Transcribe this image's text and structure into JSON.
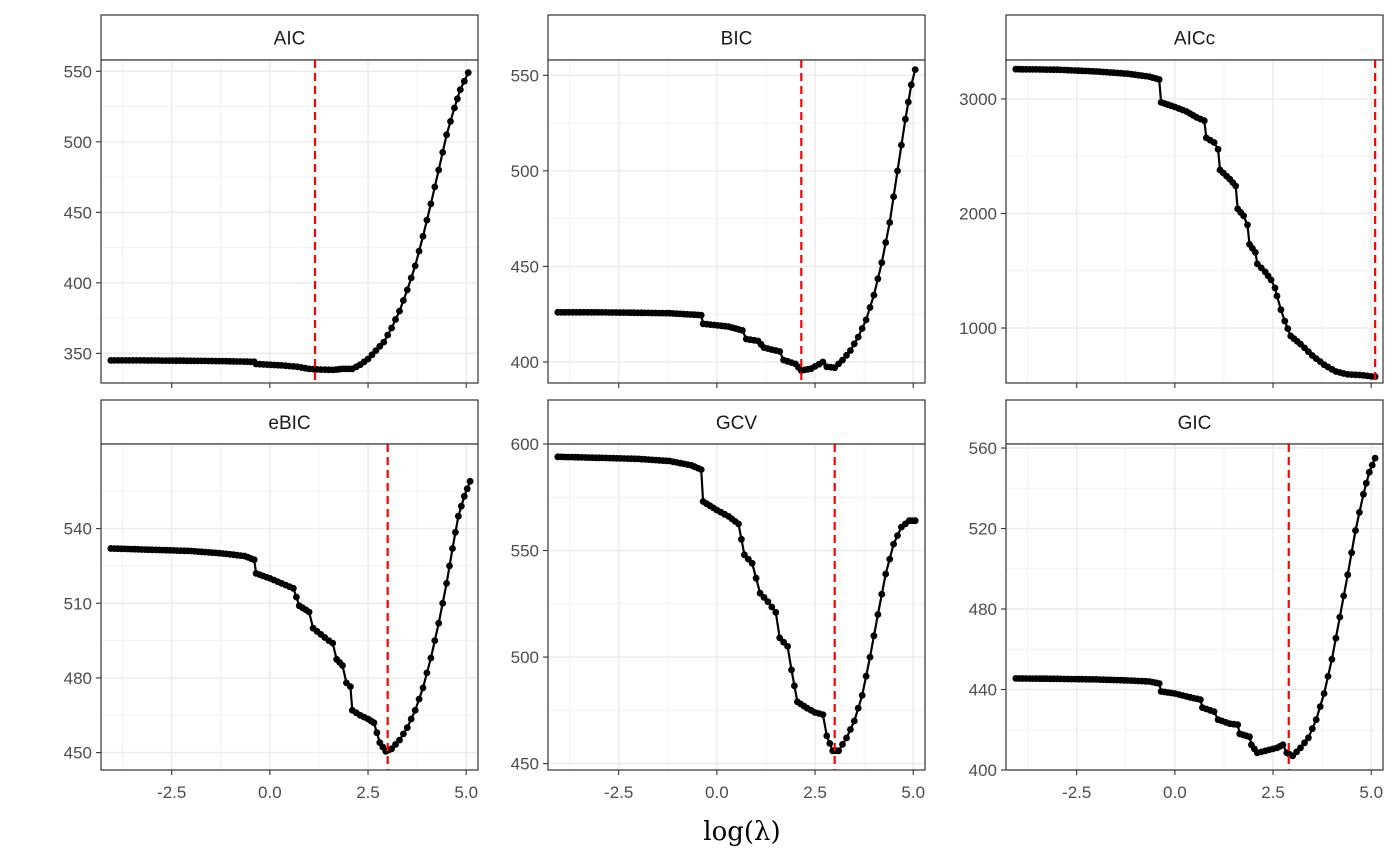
{
  "chart_data": {
    "type": "scatter",
    "layout": "facet_wrap",
    "xlabel": "log(λ)",
    "x_ticks": [
      -2.5,
      0.0,
      2.5,
      5.0
    ],
    "x_tick_labels": [
      "-2.5",
      "0.0",
      "2.5",
      "5.0"
    ],
    "xlim": [
      -4.3,
      5.3
    ],
    "grid": true,
    "vline_color": "#ff0000",
    "line_color": "#000000",
    "panels": [
      {
        "title": "AIC",
        "ylim": [
          329,
          558
        ],
        "yticks": [
          350,
          400,
          450,
          500,
          550
        ],
        "ytick_labels": [
          "350",
          "400",
          "450",
          "500",
          "550"
        ],
        "vline": 1.15,
        "points": [
          [
            -4.05,
            345
          ],
          [
            -3.2,
            345
          ],
          [
            -2.2,
            344.8
          ],
          [
            -1.2,
            344.5
          ],
          [
            -0.4,
            344
          ],
          [
            -0.35,
            342.5
          ],
          [
            0.3,
            341.5
          ],
          [
            0.7,
            340.5
          ],
          [
            1.0,
            339
          ],
          [
            1.3,
            338.5
          ],
          [
            1.6,
            338.3
          ],
          [
            1.85,
            339
          ],
          [
            2.1,
            339
          ],
          [
            2.3,
            342
          ],
          [
            2.5,
            346
          ],
          [
            2.7,
            352
          ],
          [
            2.9,
            358
          ],
          [
            3.1,
            368
          ],
          [
            3.3,
            380
          ],
          [
            3.5,
            395
          ],
          [
            3.7,
            412
          ],
          [
            3.9,
            433
          ],
          [
            4.1,
            456
          ],
          [
            4.3,
            480
          ],
          [
            4.5,
            505
          ],
          [
            4.7,
            524
          ],
          [
            4.85,
            537
          ],
          [
            4.95,
            543
          ],
          [
            5.05,
            549
          ]
        ]
      },
      {
        "title": "BIC",
        "ylim": [
          389,
          558
        ],
        "yticks": [
          400,
          450,
          500,
          550
        ],
        "ytick_labels": [
          "400",
          "450",
          "500",
          "550"
        ],
        "vline": 2.15,
        "points": [
          [
            -4.05,
            426
          ],
          [
            -3.2,
            426
          ],
          [
            -2.2,
            425.8
          ],
          [
            -1.2,
            425.5
          ],
          [
            -0.4,
            424.5
          ],
          [
            -0.35,
            420
          ],
          [
            0.3,
            418.5
          ],
          [
            0.65,
            416.5
          ],
          [
            0.75,
            412
          ],
          [
            1.05,
            411
          ],
          [
            1.2,
            407.5
          ],
          [
            1.6,
            405.5
          ],
          [
            1.7,
            401
          ],
          [
            2.0,
            399
          ],
          [
            2.15,
            395.5
          ],
          [
            2.4,
            396.5
          ],
          [
            2.7,
            400
          ],
          [
            2.8,
            397.5
          ],
          [
            3.0,
            397
          ],
          [
            3.2,
            401
          ],
          [
            3.4,
            406
          ],
          [
            3.6,
            413
          ],
          [
            3.8,
            422
          ],
          [
            4.0,
            435
          ],
          [
            4.2,
            452
          ],
          [
            4.4,
            473
          ],
          [
            4.6,
            500
          ],
          [
            4.8,
            527
          ],
          [
            4.95,
            545
          ],
          [
            5.05,
            553
          ]
        ]
      },
      {
        "title": "AICc",
        "ylim": [
          520,
          3340
        ],
        "yticks": [
          1000,
          2000,
          3000
        ],
        "ytick_labels": [
          "1000",
          "2000",
          "3000"
        ],
        "vline": 5.1,
        "points": [
          [
            -4.05,
            3260
          ],
          [
            -3.0,
            3255
          ],
          [
            -2.0,
            3240
          ],
          [
            -1.2,
            3220
          ],
          [
            -0.65,
            3195
          ],
          [
            -0.4,
            3170
          ],
          [
            -0.35,
            2970
          ],
          [
            0.0,
            2930
          ],
          [
            0.3,
            2890
          ],
          [
            0.55,
            2840
          ],
          [
            0.75,
            2810
          ],
          [
            0.8,
            2660
          ],
          [
            1.0,
            2620
          ],
          [
            1.1,
            2560
          ],
          [
            1.15,
            2380
          ],
          [
            1.4,
            2300
          ],
          [
            1.55,
            2240
          ],
          [
            1.6,
            2040
          ],
          [
            1.75,
            1980
          ],
          [
            1.85,
            1900
          ],
          [
            1.9,
            1730
          ],
          [
            2.05,
            1660
          ],
          [
            2.1,
            1560
          ],
          [
            2.3,
            1490
          ],
          [
            2.45,
            1420
          ],
          [
            2.55,
            1350
          ],
          [
            2.6,
            1280
          ],
          [
            2.7,
            1160
          ],
          [
            2.8,
            1060
          ],
          [
            2.95,
            930
          ],
          [
            3.2,
            860
          ],
          [
            3.5,
            760
          ],
          [
            3.8,
            680
          ],
          [
            4.1,
            620
          ],
          [
            4.4,
            595
          ],
          [
            4.7,
            590
          ],
          [
            5.0,
            578
          ],
          [
            5.1,
            575
          ]
        ]
      },
      {
        "title": "eBIC",
        "ylim": [
          443,
          574
        ],
        "yticks": [
          450,
          480,
          510,
          540
        ],
        "ytick_labels": [
          "450",
          "480",
          "510",
          "540"
        ],
        "vline": 3.0,
        "points": [
          [
            -4.05,
            532
          ],
          [
            -3.0,
            531.5
          ],
          [
            -2.0,
            531
          ],
          [
            -1.2,
            530
          ],
          [
            -0.65,
            529
          ],
          [
            -0.4,
            527.5
          ],
          [
            -0.35,
            522
          ],
          [
            0.0,
            520
          ],
          [
            0.3,
            518
          ],
          [
            0.6,
            516
          ],
          [
            0.75,
            509
          ],
          [
            1.0,
            506.5
          ],
          [
            1.1,
            500
          ],
          [
            1.3,
            497.5
          ],
          [
            1.5,
            495
          ],
          [
            1.6,
            494
          ],
          [
            1.7,
            487.5
          ],
          [
            1.85,
            485
          ],
          [
            1.95,
            478
          ],
          [
            2.05,
            476.5
          ],
          [
            2.1,
            467
          ],
          [
            2.3,
            465
          ],
          [
            2.5,
            463.5
          ],
          [
            2.65,
            462
          ],
          [
            2.8,
            454
          ],
          [
            2.95,
            450.5
          ],
          [
            3.1,
            451.5
          ],
          [
            3.3,
            455
          ],
          [
            3.5,
            460
          ],
          [
            3.7,
            467
          ],
          [
            3.9,
            476
          ],
          [
            4.1,
            488
          ],
          [
            4.3,
            502
          ],
          [
            4.5,
            518
          ],
          [
            4.65,
            532
          ],
          [
            4.8,
            545
          ],
          [
            4.95,
            553
          ],
          [
            5.1,
            559
          ]
        ]
      },
      {
        "title": "GCV",
        "ylim": [
          447,
          600
        ],
        "yticks": [
          450,
          500,
          550,
          600
        ],
        "ytick_labels": [
          "450",
          "500",
          "550",
          "600"
        ],
        "vline": 3.0,
        "points": [
          [
            -4.05,
            594
          ],
          [
            -3.0,
            593.5
          ],
          [
            -2.0,
            593
          ],
          [
            -1.2,
            592
          ],
          [
            -0.65,
            590
          ],
          [
            -0.4,
            588
          ],
          [
            -0.35,
            573
          ],
          [
            0.0,
            569
          ],
          [
            0.3,
            566
          ],
          [
            0.55,
            562.5
          ],
          [
            0.7,
            548
          ],
          [
            0.9,
            544
          ],
          [
            1.1,
            530
          ],
          [
            1.3,
            526
          ],
          [
            1.5,
            521
          ],
          [
            1.6,
            509
          ],
          [
            1.8,
            505
          ],
          [
            1.9,
            494
          ],
          [
            2.05,
            479
          ],
          [
            2.3,
            476
          ],
          [
            2.5,
            474
          ],
          [
            2.7,
            473
          ],
          [
            2.8,
            463
          ],
          [
            2.95,
            456
          ],
          [
            3.1,
            456
          ],
          [
            3.3,
            462
          ],
          [
            3.5,
            470
          ],
          [
            3.7,
            482
          ],
          [
            3.9,
            500
          ],
          [
            4.1,
            520
          ],
          [
            4.3,
            539
          ],
          [
            4.5,
            553
          ],
          [
            4.7,
            561
          ],
          [
            4.9,
            564
          ],
          [
            5.05,
            564
          ]
        ]
      },
      {
        "title": "GIC",
        "ylim": [
          400,
          562
        ],
        "yticks": [
          400,
          440,
          480,
          520,
          560
        ],
        "ytick_labels": [
          "400",
          "440",
          "480",
          "520",
          "560"
        ],
        "vline": 2.9,
        "points": [
          [
            -4.05,
            445.5
          ],
          [
            -3.0,
            445.3
          ],
          [
            -2.0,
            445
          ],
          [
            -1.2,
            444.5
          ],
          [
            -0.65,
            444
          ],
          [
            -0.4,
            443
          ],
          [
            -0.35,
            439
          ],
          [
            0.0,
            438
          ],
          [
            0.3,
            436.5
          ],
          [
            0.65,
            435
          ],
          [
            0.7,
            431
          ],
          [
            1.0,
            429
          ],
          [
            1.1,
            425
          ],
          [
            1.4,
            423
          ],
          [
            1.6,
            422.5
          ],
          [
            1.65,
            418
          ],
          [
            1.9,
            416.5
          ],
          [
            1.95,
            412.5
          ],
          [
            2.1,
            408.5
          ],
          [
            2.3,
            409.5
          ],
          [
            2.6,
            411
          ],
          [
            2.75,
            412.5
          ],
          [
            2.85,
            408.5
          ],
          [
            3.0,
            407
          ],
          [
            3.2,
            411
          ],
          [
            3.4,
            416
          ],
          [
            3.6,
            425
          ],
          [
            3.8,
            438
          ],
          [
            4.0,
            455
          ],
          [
            4.2,
            476
          ],
          [
            4.4,
            497
          ],
          [
            4.6,
            519
          ],
          [
            4.8,
            537
          ],
          [
            4.95,
            548
          ],
          [
            5.1,
            555
          ]
        ]
      }
    ]
  }
}
